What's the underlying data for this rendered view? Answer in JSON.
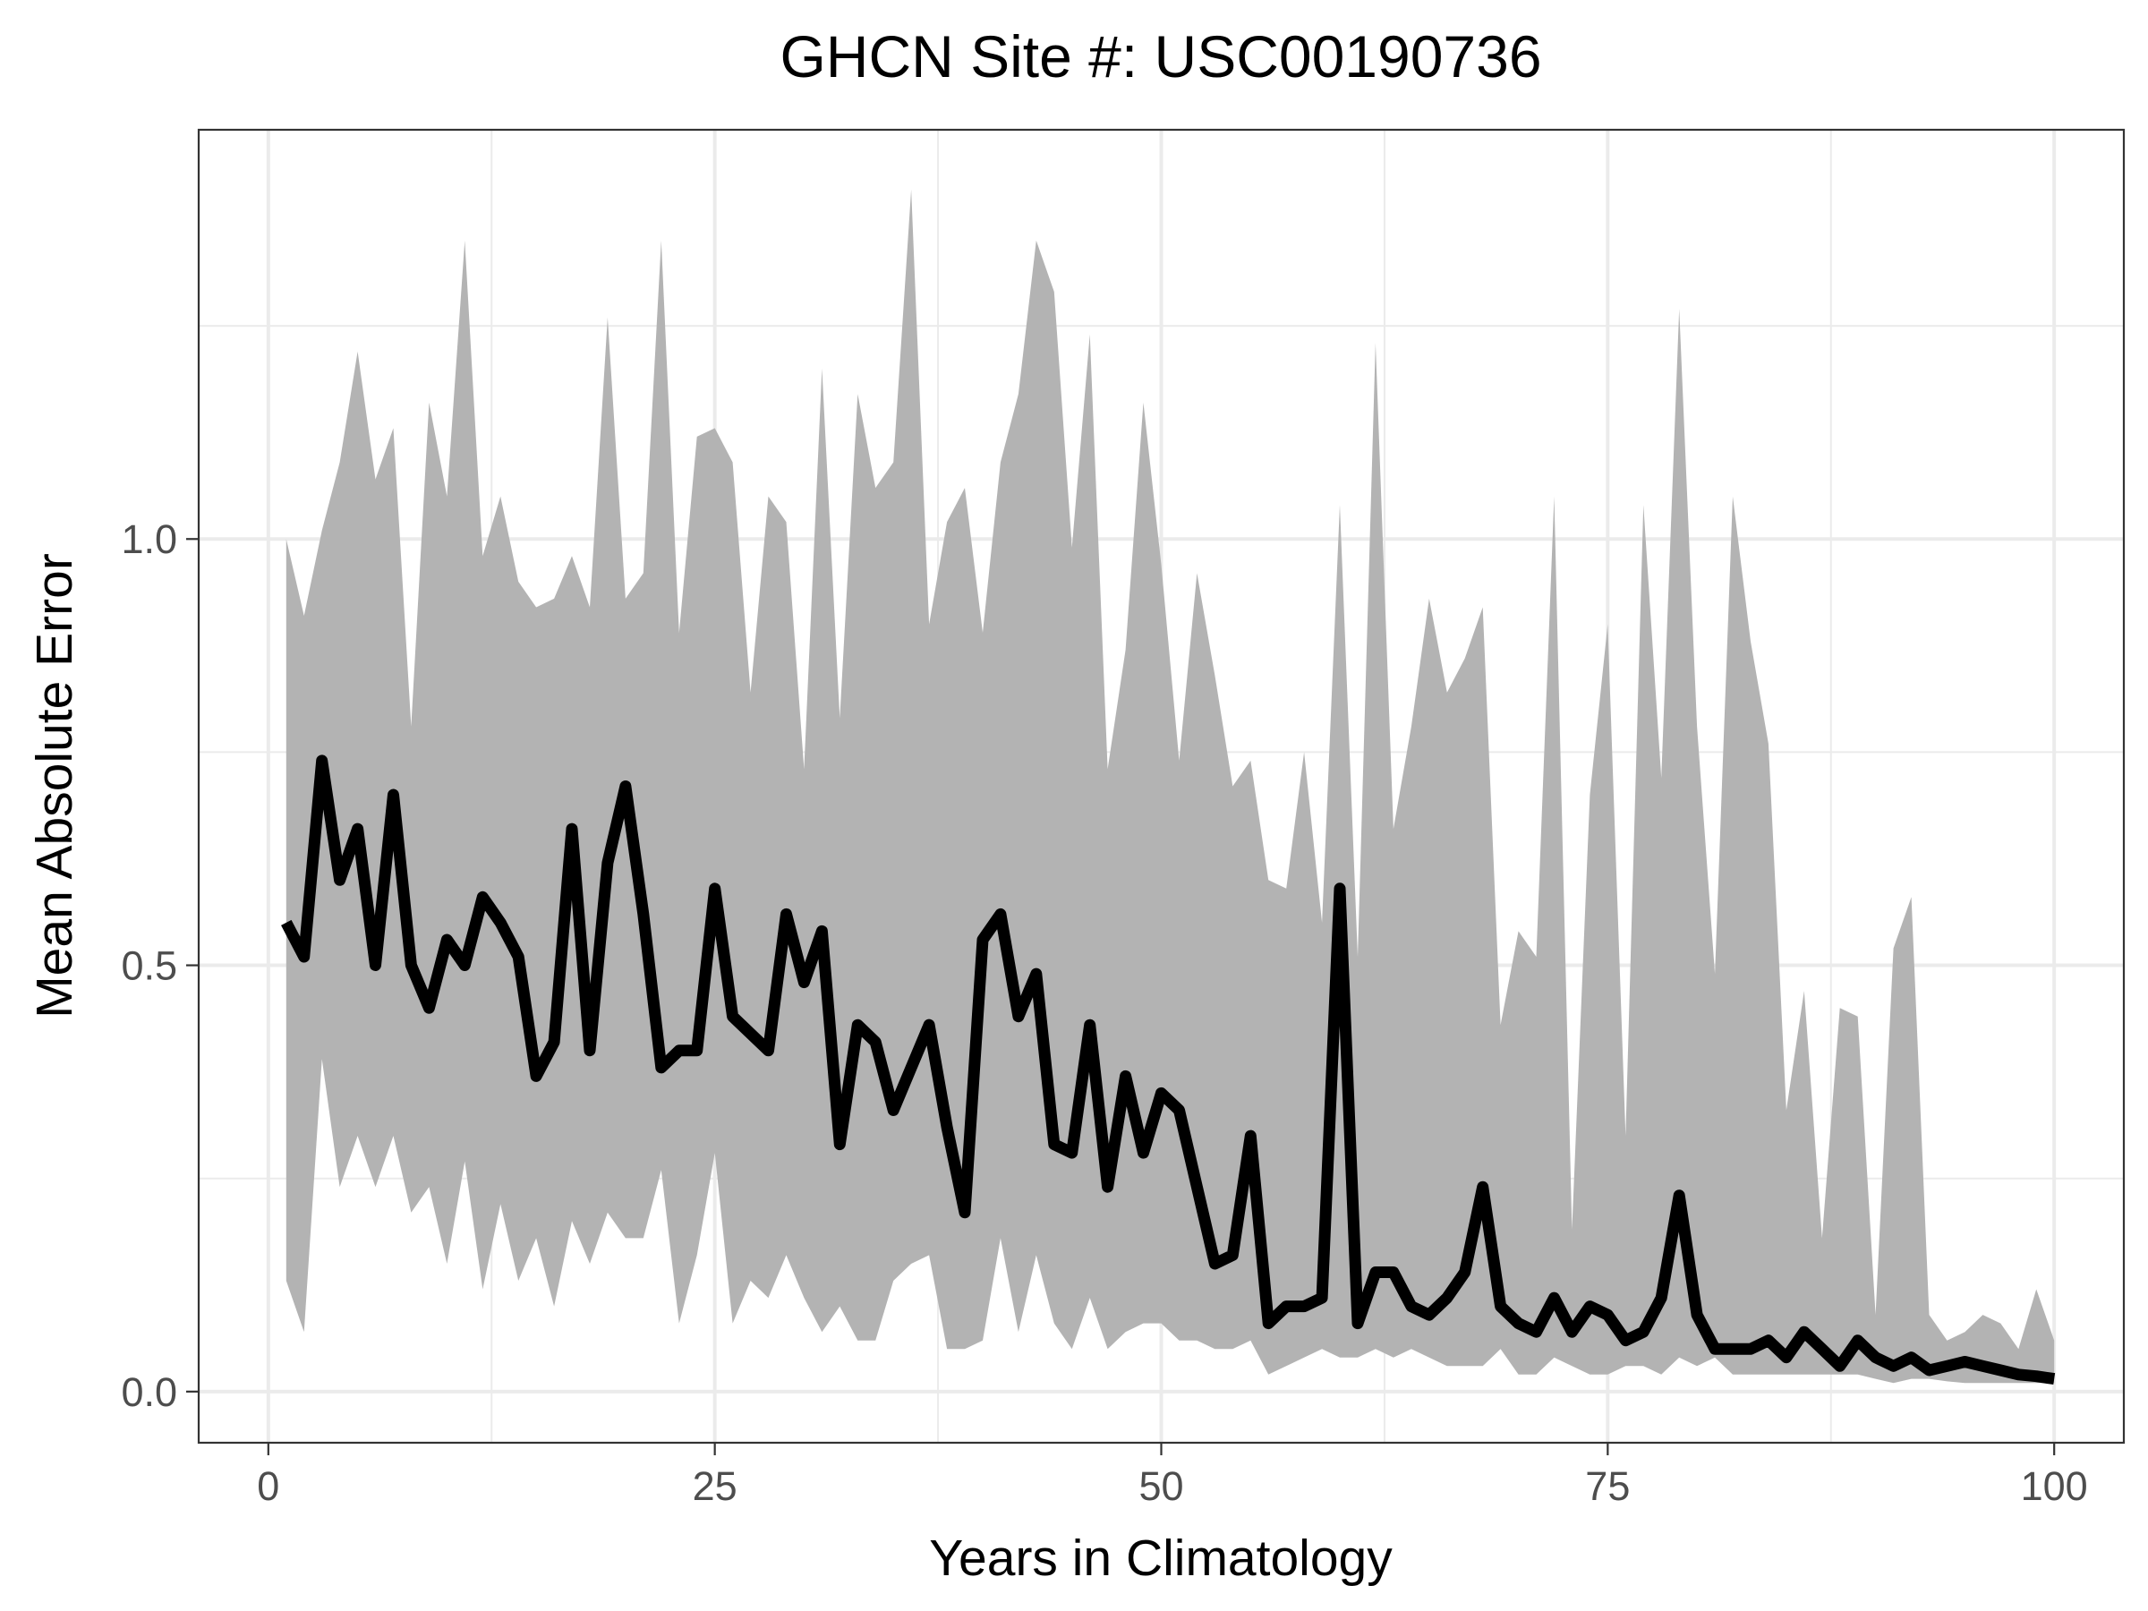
{
  "chart_data": {
    "type": "line",
    "title": "GHCN Site #: USC00190736",
    "xlabel": "Years in Climatology",
    "ylabel": "Mean Absolute Error",
    "xlim": [
      -3.9,
      103.9
    ],
    "ylim": [
      -0.06,
      1.48
    ],
    "x_ticks": [
      0,
      25,
      50,
      75,
      100
    ],
    "x_tick_labels": [
      "0",
      "25",
      "50",
      "75",
      "100"
    ],
    "y_ticks": [
      0.0,
      0.5,
      1.0
    ],
    "y_tick_labels": [
      "0.0",
      "0.5",
      "1.0"
    ],
    "x_minor_ticks": [
      12.5,
      37.5,
      62.5,
      87.5
    ],
    "y_minor_ticks": [
      0.25,
      0.75,
      1.25
    ],
    "grid": true,
    "legend": "none",
    "colors": {
      "line": "#000000",
      "band": "#b3b3b3",
      "grid": "#ebebeb",
      "panel_border": "#333333"
    },
    "x": [
      1,
      2,
      3,
      4,
      5,
      6,
      7,
      8,
      9,
      10,
      11,
      12,
      13,
      14,
      15,
      16,
      17,
      18,
      19,
      20,
      21,
      22,
      23,
      24,
      25,
      26,
      27,
      28,
      29,
      30,
      31,
      32,
      33,
      34,
      35,
      36,
      37,
      38,
      39,
      40,
      41,
      42,
      43,
      44,
      45,
      46,
      47,
      48,
      49,
      50,
      51,
      52,
      53,
      54,
      55,
      56,
      57,
      58,
      59,
      60,
      61,
      62,
      63,
      64,
      65,
      66,
      67,
      68,
      69,
      70,
      71,
      72,
      73,
      74,
      75,
      76,
      77,
      78,
      79,
      80,
      81,
      82,
      83,
      84,
      85,
      86,
      87,
      88,
      89,
      90,
      91,
      92,
      93,
      94,
      95,
      96,
      97,
      98,
      99,
      100
    ],
    "series": [
      {
        "role": "line",
        "values": [
          0.55,
          0.51,
          0.74,
          0.6,
          0.66,
          0.5,
          0.7,
          0.5,
          0.45,
          0.53,
          0.5,
          0.58,
          0.55,
          0.51,
          0.37,
          0.41,
          0.66,
          0.4,
          0.62,
          0.71,
          0.56,
          0.38,
          0.4,
          0.4,
          0.59,
          0.44,
          0.42,
          0.4,
          0.56,
          0.48,
          0.54,
          0.29,
          0.43,
          0.41,
          0.33,
          0.38,
          0.43,
          0.31,
          0.21,
          0.53,
          0.56,
          0.44,
          0.49,
          0.29,
          0.28,
          0.43,
          0.24,
          0.37,
          0.28,
          0.35,
          0.33,
          0.24,
          0.15,
          0.16,
          0.3,
          0.08,
          0.1,
          0.1,
          0.11,
          0.59,
          0.08,
          0.14,
          0.14,
          0.1,
          0.09,
          0.11,
          0.14,
          0.24,
          0.1,
          0.08,
          0.07,
          0.11,
          0.07,
          0.1,
          0.09,
          0.06,
          0.07,
          0.11,
          0.23,
          0.09,
          0.05,
          0.05,
          0.05,
          0.06,
          0.04,
          0.07,
          0.05,
          0.03,
          0.06,
          0.04,
          0.03,
          0.04,
          0.025,
          0.03,
          0.035,
          0.03,
          0.025,
          0.02,
          0.018,
          0.015
        ]
      },
      {
        "role": "band-upper",
        "values": [
          1.0,
          0.91,
          1.01,
          1.09,
          1.22,
          1.07,
          1.13,
          0.78,
          1.16,
          1.05,
          1.35,
          0.98,
          1.05,
          0.95,
          0.92,
          0.93,
          0.98,
          0.92,
          1.26,
          0.93,
          0.96,
          1.35,
          0.89,
          1.12,
          1.13,
          1.09,
          0.82,
          1.05,
          1.02,
          0.73,
          1.2,
          0.79,
          1.17,
          1.06,
          1.09,
          1.41,
          0.9,
          1.02,
          1.06,
          0.89,
          1.09,
          1.17,
          1.35,
          1.29,
          0.99,
          1.24,
          0.73,
          0.87,
          1.16,
          0.97,
          0.74,
          0.96,
          0.84,
          0.71,
          0.74,
          0.6,
          0.59,
          0.75,
          0.55,
          1.04,
          0.51,
          1.23,
          0.66,
          0.78,
          0.93,
          0.82,
          0.86,
          0.92,
          0.43,
          0.54,
          0.51,
          1.05,
          0.19,
          0.7,
          0.9,
          0.3,
          1.04,
          0.72,
          1.27,
          0.78,
          0.49,
          1.05,
          0.88,
          0.76,
          0.33,
          0.47,
          0.18,
          0.45,
          0.44,
          0.09,
          0.52,
          0.58,
          0.09,
          0.06,
          0.07,
          0.09,
          0.08,
          0.05,
          0.12,
          0.06
        ]
      },
      {
        "role": "band-lower",
        "values": [
          0.13,
          0.07,
          0.39,
          0.24,
          0.3,
          0.24,
          0.3,
          0.21,
          0.24,
          0.15,
          0.27,
          0.12,
          0.22,
          0.13,
          0.18,
          0.1,
          0.2,
          0.15,
          0.21,
          0.18,
          0.18,
          0.26,
          0.08,
          0.16,
          0.28,
          0.08,
          0.13,
          0.11,
          0.16,
          0.11,
          0.07,
          0.1,
          0.06,
          0.06,
          0.13,
          0.15,
          0.16,
          0.05,
          0.05,
          0.06,
          0.18,
          0.07,
          0.16,
          0.08,
          0.05,
          0.11,
          0.05,
          0.07,
          0.08,
          0.08,
          0.06,
          0.06,
          0.05,
          0.05,
          0.06,
          0.02,
          0.03,
          0.04,
          0.05,
          0.04,
          0.04,
          0.05,
          0.04,
          0.05,
          0.04,
          0.03,
          0.03,
          0.03,
          0.05,
          0.02,
          0.02,
          0.04,
          0.03,
          0.02,
          0.02,
          0.03,
          0.03,
          0.02,
          0.04,
          0.03,
          0.04,
          0.02,
          0.02,
          0.02,
          0.02,
          0.02,
          0.02,
          0.02,
          0.02,
          0.015,
          0.01,
          0.015,
          0.015,
          0.012,
          0.01,
          0.01,
          0.01,
          0.01,
          0.01,
          0.01
        ]
      }
    ]
  }
}
